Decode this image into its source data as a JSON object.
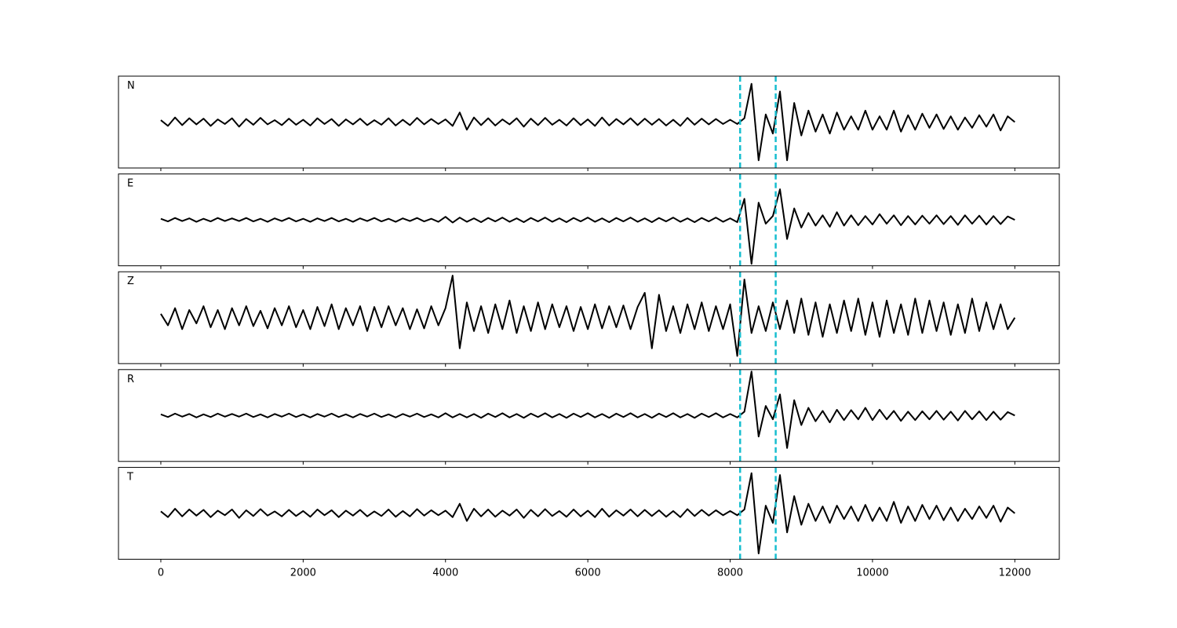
{
  "chart_data": {
    "type": "line",
    "x": [
      0,
      100,
      200,
      300,
      400,
      500,
      600,
      700,
      800,
      900,
      1000,
      1100,
      1200,
      1300,
      1400,
      1500,
      1600,
      1700,
      1800,
      1900,
      2000,
      2100,
      2200,
      2300,
      2400,
      2500,
      2600,
      2700,
      2800,
      2900,
      3000,
      3100,
      3200,
      3300,
      3400,
      3500,
      3600,
      3700,
      3800,
      3900,
      4000,
      4100,
      4200,
      4300,
      4400,
      4500,
      4600,
      4700,
      4800,
      4900,
      5000,
      5100,
      5200,
      5300,
      5400,
      5500,
      5600,
      5700,
      5800,
      5900,
      6000,
      6100,
      6200,
      6300,
      6400,
      6500,
      6600,
      6700,
      6800,
      6900,
      7000,
      7100,
      7200,
      7300,
      7400,
      7500,
      7600,
      7700,
      7800,
      7900,
      8000,
      8100,
      8200,
      8300,
      8400,
      8500,
      8600,
      8700,
      8800,
      8900,
      9000,
      9100,
      9200,
      9300,
      9400,
      9500,
      9600,
      9700,
      9800,
      9900,
      10000,
      10100,
      10200,
      10300,
      10400,
      10500,
      10600,
      10700,
      10800,
      10900,
      11000,
      11100,
      11200,
      11300,
      11400,
      11500,
      11600,
      11700,
      11800,
      11900,
      12000
    ],
    "xlim": [
      -595,
      12625
    ],
    "xticks": [
      0,
      2000,
      4000,
      6000,
      8000,
      10000,
      12000
    ],
    "ylim": [
      -1.2,
      1.2
    ],
    "markers": [
      8140,
      8640
    ],
    "marker_color": "#17becf",
    "series": [
      {
        "name": "N",
        "color": "#000000",
        "values": [
          0.05,
          -0.1,
          0.12,
          -0.08,
          0.1,
          -0.06,
          0.09,
          -0.1,
          0.07,
          -0.05,
          0.1,
          -0.12,
          0.08,
          -0.07,
          0.11,
          -0.06,
          0.05,
          -0.08,
          0.09,
          -0.07,
          0.06,
          -0.09,
          0.1,
          -0.05,
          0.08,
          -0.1,
          0.07,
          -0.06,
          0.09,
          -0.08,
          0.05,
          -0.07,
          0.1,
          -0.09,
          0.06,
          -0.08,
          0.11,
          -0.06,
          0.08,
          -0.05,
          0.07,
          -0.1,
          0.25,
          -0.2,
          0.12,
          -0.08,
          0.1,
          -0.09,
          0.07,
          -0.06,
          0.1,
          -0.12,
          0.09,
          -0.08,
          0.11,
          -0.07,
          0.06,
          -0.09,
          0.1,
          -0.08,
          0.07,
          -0.1,
          0.12,
          -0.09,
          0.08,
          -0.06,
          0.1,
          -0.08,
          0.09,
          -0.07,
          0.08,
          -0.09,
          0.06,
          -0.1,
          0.11,
          -0.07,
          0.09,
          -0.06,
          0.08,
          -0.05,
          0.06,
          -0.05,
          0.1,
          1.0,
          -1.0,
          0.2,
          -0.3,
          0.8,
          -1.0,
          0.5,
          -0.35,
          0.3,
          -0.25,
          0.2,
          -0.3,
          0.25,
          -0.2,
          0.15,
          -0.2,
          0.3,
          -0.2,
          0.15,
          -0.2,
          0.3,
          -0.25,
          0.18,
          -0.2,
          0.22,
          -0.15,
          0.2,
          -0.18,
          0.15,
          -0.2,
          0.12,
          -0.15,
          0.18,
          -0.12,
          0.2,
          -0.22,
          0.15,
          0.0
        ]
      },
      {
        "name": "E",
        "color": "#000000",
        "values": [
          0.03,
          -0.04,
          0.05,
          -0.03,
          0.04,
          -0.05,
          0.03,
          -0.04,
          0.05,
          -0.03,
          0.04,
          -0.03,
          0.05,
          -0.04,
          0.03,
          -0.05,
          0.04,
          -0.03,
          0.05,
          -0.04,
          0.03,
          -0.05,
          0.04,
          -0.03,
          0.05,
          -0.04,
          0.03,
          -0.05,
          0.04,
          -0.03,
          0.05,
          -0.04,
          0.03,
          -0.05,
          0.04,
          -0.03,
          0.05,
          -0.04,
          0.03,
          -0.05,
          0.08,
          -0.07,
          0.06,
          -0.05,
          0.04,
          -0.06,
          0.05,
          -0.04,
          0.06,
          -0.05,
          0.04,
          -0.06,
          0.05,
          -0.04,
          0.06,
          -0.05,
          0.04,
          -0.06,
          0.05,
          -0.04,
          0.06,
          -0.05,
          0.04,
          -0.06,
          0.05,
          -0.04,
          0.06,
          -0.05,
          0.04,
          -0.06,
          0.05,
          -0.04,
          0.06,
          -0.05,
          0.04,
          -0.06,
          0.05,
          -0.04,
          0.06,
          -0.05,
          0.04,
          -0.06,
          0.55,
          -1.15,
          0.45,
          -0.1,
          0.1,
          0.8,
          -0.5,
          0.3,
          -0.2,
          0.18,
          -0.15,
          0.12,
          -0.18,
          0.2,
          -0.15,
          0.12,
          -0.14,
          0.1,
          -0.12,
          0.15,
          -0.1,
          0.12,
          -0.14,
          0.1,
          -0.12,
          0.11,
          -0.1,
          0.12,
          -0.11,
          0.1,
          -0.13,
          0.12,
          -0.1,
          0.11,
          -0.12,
          0.1,
          -0.11,
          0.09,
          0.0
        ]
      },
      {
        "name": "Z",
        "color": "#000000",
        "values": [
          0.1,
          -0.2,
          0.25,
          -0.3,
          0.2,
          -0.15,
          0.3,
          -0.25,
          0.2,
          -0.3,
          0.25,
          -0.2,
          0.3,
          -0.22,
          0.18,
          -0.28,
          0.25,
          -0.2,
          0.3,
          -0.25,
          0.2,
          -0.3,
          0.28,
          -0.22,
          0.35,
          -0.3,
          0.25,
          -0.2,
          0.3,
          -0.35,
          0.28,
          -0.25,
          0.3,
          -0.2,
          0.25,
          -0.3,
          0.22,
          -0.28,
          0.3,
          -0.2,
          0.25,
          1.1,
          -0.8,
          0.4,
          -0.35,
          0.3,
          -0.4,
          0.35,
          -0.3,
          0.45,
          -0.4,
          0.3,
          -0.35,
          0.4,
          -0.3,
          0.35,
          -0.25,
          0.3,
          -0.35,
          0.28,
          -0.3,
          0.35,
          -0.28,
          0.3,
          -0.25,
          0.32,
          -0.3,
          0.28,
          0.65,
          -0.8,
          0.6,
          -0.35,
          0.3,
          -0.4,
          0.35,
          -0.3,
          0.4,
          -0.35,
          0.3,
          -0.3,
          0.35,
          -1.0,
          1.0,
          -0.4,
          0.3,
          -0.35,
          0.4,
          -0.3,
          0.45,
          -0.4,
          0.5,
          -0.45,
          0.4,
          -0.5,
          0.35,
          -0.4,
          0.45,
          -0.35,
          0.5,
          -0.45,
          0.4,
          -0.5,
          0.45,
          -0.4,
          0.35,
          -0.45,
          0.5,
          -0.4,
          0.45,
          -0.35,
          0.4,
          -0.45,
          0.35,
          -0.4,
          0.5,
          -0.35,
          0.4,
          -0.3,
          0.35,
          -0.3,
          0.0
        ]
      },
      {
        "name": "R",
        "color": "#000000",
        "values": [
          0.03,
          -0.04,
          0.05,
          -0.03,
          0.04,
          -0.05,
          0.03,
          -0.04,
          0.05,
          -0.03,
          0.04,
          -0.03,
          0.05,
          -0.04,
          0.03,
          -0.05,
          0.04,
          -0.03,
          0.05,
          -0.04,
          0.03,
          -0.05,
          0.04,
          -0.03,
          0.05,
          -0.04,
          0.03,
          -0.05,
          0.04,
          -0.03,
          0.05,
          -0.04,
          0.03,
          -0.05,
          0.04,
          -0.03,
          0.05,
          -0.04,
          0.03,
          -0.05,
          0.06,
          -0.05,
          0.04,
          -0.05,
          0.04,
          -0.06,
          0.05,
          -0.04,
          0.06,
          -0.05,
          0.04,
          -0.06,
          0.05,
          -0.04,
          0.06,
          -0.05,
          0.04,
          -0.06,
          0.05,
          -0.04,
          0.06,
          -0.05,
          0.04,
          -0.06,
          0.05,
          -0.04,
          0.06,
          -0.05,
          0.04,
          -0.06,
          0.05,
          -0.04,
          0.06,
          -0.05,
          0.04,
          -0.06,
          0.05,
          -0.04,
          0.06,
          -0.05,
          0.04,
          -0.05,
          0.1,
          1.15,
          -0.55,
          0.25,
          -0.1,
          0.55,
          -0.85,
          0.4,
          -0.25,
          0.2,
          -0.15,
          0.12,
          -0.18,
          0.15,
          -0.12,
          0.14,
          -0.1,
          0.2,
          -0.12,
          0.15,
          -0.1,
          0.12,
          -0.14,
          0.1,
          -0.12,
          0.11,
          -0.1,
          0.12,
          -0.11,
          0.1,
          -0.13,
          0.12,
          -0.1,
          0.11,
          -0.12,
          0.1,
          -0.11,
          0.09,
          0.0
        ]
      },
      {
        "name": "T",
        "color": "#000000",
        "values": [
          0.05,
          -0.1,
          0.12,
          -0.08,
          0.1,
          -0.06,
          0.09,
          -0.1,
          0.07,
          -0.05,
          0.1,
          -0.12,
          0.08,
          -0.07,
          0.11,
          -0.06,
          0.05,
          -0.08,
          0.09,
          -0.07,
          0.06,
          -0.09,
          0.1,
          -0.05,
          0.08,
          -0.1,
          0.07,
          -0.06,
          0.09,
          -0.08,
          0.05,
          -0.07,
          0.1,
          -0.09,
          0.06,
          -0.08,
          0.11,
          -0.06,
          0.08,
          -0.05,
          0.07,
          -0.1,
          0.25,
          -0.2,
          0.12,
          -0.08,
          0.1,
          -0.09,
          0.07,
          -0.06,
          0.1,
          -0.12,
          0.09,
          -0.08,
          0.11,
          -0.07,
          0.06,
          -0.09,
          0.1,
          -0.08,
          0.07,
          -0.1,
          0.12,
          -0.09,
          0.08,
          -0.06,
          0.1,
          -0.08,
          0.09,
          -0.07,
          0.08,
          -0.09,
          0.06,
          -0.1,
          0.11,
          -0.07,
          0.09,
          -0.06,
          0.08,
          -0.05,
          0.06,
          -0.05,
          0.1,
          1.05,
          -1.05,
          0.2,
          -0.25,
          1.0,
          -0.5,
          0.45,
          -0.3,
          0.25,
          -0.2,
          0.18,
          -0.25,
          0.2,
          -0.15,
          0.18,
          -0.2,
          0.22,
          -0.2,
          0.15,
          -0.2,
          0.3,
          -0.25,
          0.18,
          -0.2,
          0.22,
          -0.15,
          0.2,
          -0.18,
          0.15,
          -0.2,
          0.12,
          -0.15,
          0.18,
          -0.12,
          0.2,
          -0.22,
          0.15,
          0.0
        ]
      }
    ]
  }
}
